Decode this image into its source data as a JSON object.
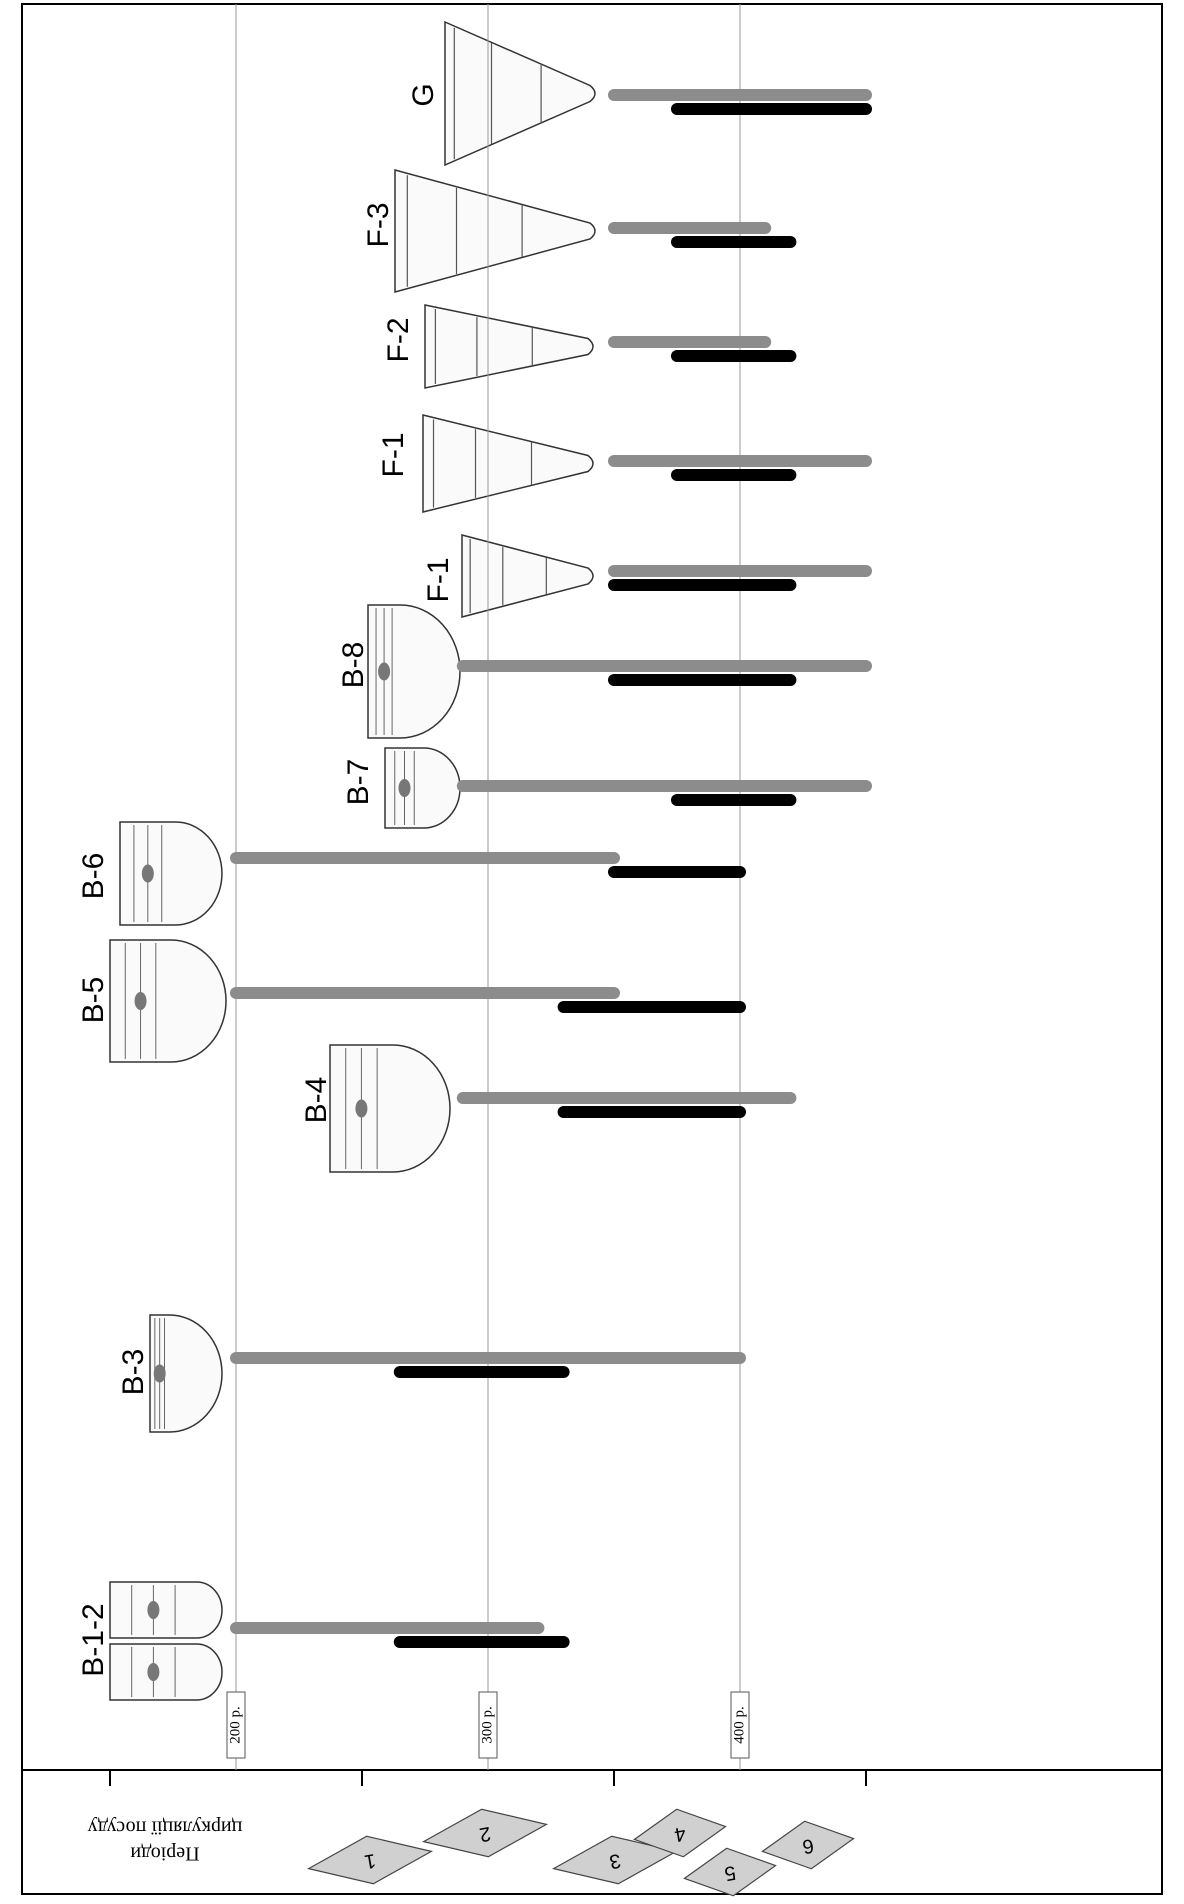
{
  "chart_data": {
    "type": "range-bar",
    "categories": [
      "G",
      "F-3",
      "F-2",
      "F-1",
      "F-1",
      "B-8",
      "B-7",
      "B-6",
      "B-5",
      "B-4",
      "B-3",
      "B-1-2"
    ],
    "series": [
      {
        "color": "#8c8c8c",
        "values": [
          [
            350,
            450
          ],
          [
            350,
            410
          ],
          [
            350,
            410
          ],
          [
            350,
            450
          ],
          [
            350,
            450
          ],
          [
            290,
            450
          ],
          [
            290,
            450
          ],
          [
            200,
            350
          ],
          [
            200,
            350
          ],
          [
            290,
            420
          ],
          [
            200,
            400
          ],
          [
            200,
            320
          ]
        ]
      },
      {
        "color": "#000000",
        "values": [
          [
            375,
            450
          ],
          [
            375,
            420
          ],
          [
            375,
            420
          ],
          [
            375,
            420
          ],
          [
            350,
            420
          ],
          [
            350,
            420
          ],
          [
            375,
            420
          ],
          [
            350,
            400
          ],
          [
            330,
            400
          ],
          [
            330,
            400
          ],
          [
            265,
            330
          ],
          [
            265,
            330
          ]
        ]
      }
    ],
    "xlim": [
      150,
      450
    ],
    "xticks": [
      {
        "value": 200,
        "label": "200 р."
      },
      {
        "value": 300,
        "label": "300 р."
      },
      {
        "value": 400,
        "label": "400 р."
      }
    ],
    "grid": true,
    "periods_title": [
      "Періоди",
      "циркуляції посуду"
    ],
    "period_ticks": [
      150,
      250,
      350,
      450
    ],
    "period_labels": [
      "1",
      "2",
      "3",
      "4",
      "5",
      "6"
    ]
  }
}
